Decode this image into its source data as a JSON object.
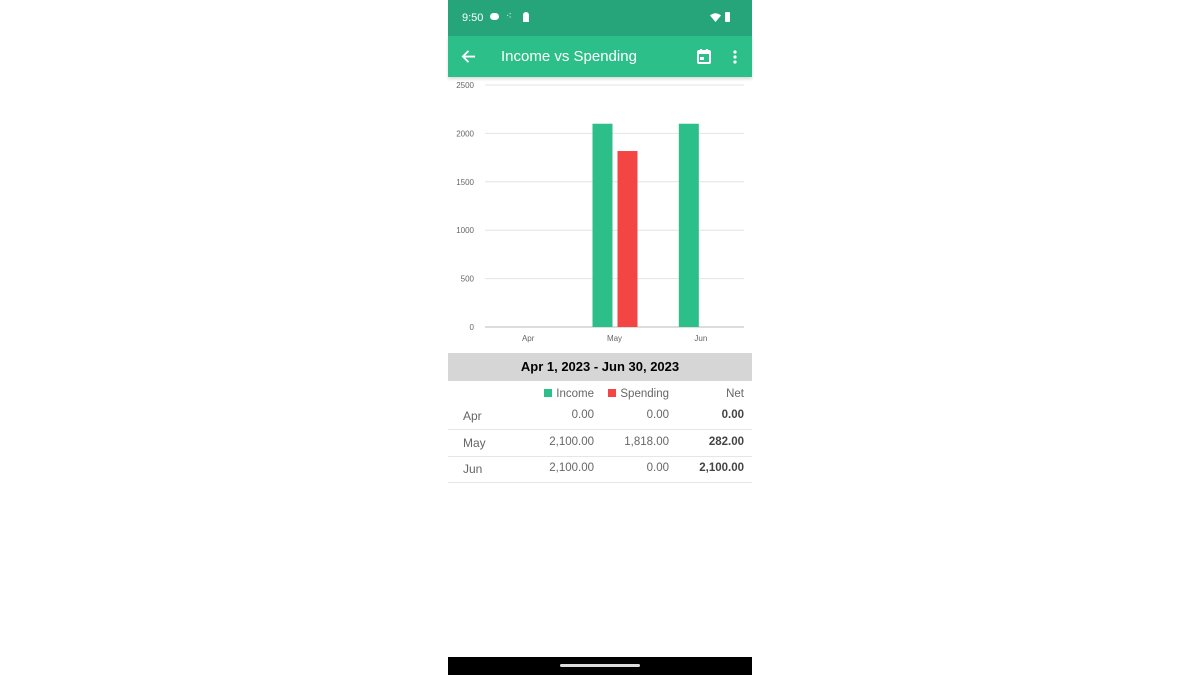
{
  "status": {
    "time": "9:50"
  },
  "appbar": {
    "title": "Income vs Spending"
  },
  "colors": {
    "income": "#2dbf8a",
    "spending": "#f44545",
    "statusbar": "#27a57a",
    "appbar": "#2dbf8a"
  },
  "chart_data": {
    "type": "bar",
    "categories": [
      "Apr",
      "May",
      "Jun"
    ],
    "series": [
      {
        "name": "Income",
        "values": [
          0,
          2100,
          2100
        ]
      },
      {
        "name": "Spending",
        "values": [
          0,
          1818,
          0
        ]
      }
    ],
    "ylim": [
      0,
      2500
    ],
    "yticks": [
      "0",
      "500",
      "1000",
      "1500",
      "2000",
      "2500"
    ],
    "grid": true
  },
  "date_range": "Apr 1, 2023 - Jun 30, 2023",
  "table": {
    "headers": {
      "income": "Income",
      "spending": "Spending",
      "net": "Net"
    },
    "rows": [
      {
        "month": "Apr",
        "income": "0.00",
        "spending": "0.00",
        "net": "0.00"
      },
      {
        "month": "May",
        "income": "2,100.00",
        "spending": "1,818.00",
        "net": "282.00"
      },
      {
        "month": "Jun",
        "income": "2,100.00",
        "spending": "0.00",
        "net": "2,100.00"
      }
    ]
  }
}
